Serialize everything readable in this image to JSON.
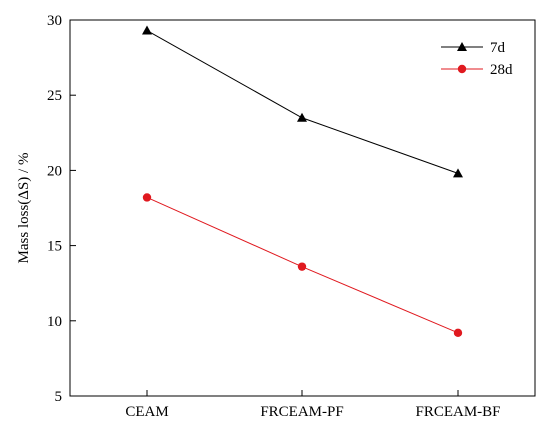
{
  "chart_data": {
    "type": "line",
    "categories": [
      "CEAM",
      "FRCEAM-PF",
      "FRCEAM-BF"
    ],
    "series": [
      {
        "name": "7d",
        "values": [
          29.3,
          23.5,
          19.8
        ],
        "color": "#000000",
        "marker": "triangle"
      },
      {
        "name": "28d",
        "values": [
          18.2,
          13.6,
          9.2
        ],
        "color": "#e0191f",
        "marker": "circle"
      }
    ],
    "title": "",
    "xlabel": "",
    "ylabel": "Mass loss(ΔS) / %",
    "ylim": [
      5,
      30
    ],
    "yticks": [
      5,
      10,
      15,
      20,
      25,
      30
    ],
    "legend_position": "top-right",
    "grid": false
  }
}
